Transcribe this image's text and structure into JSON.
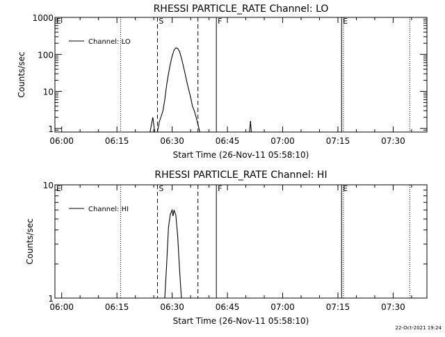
{
  "chart_data": [
    {
      "type": "line",
      "title": "RHESSI PARTICLE_RATE Channel: LO",
      "xlabel": "Start Time (26-Nov-11 05:58:10)",
      "ylabel": "Counts/sec",
      "x_tick_labels": [
        "06:00",
        "06:15",
        "06:30",
        "06:45",
        "07:00",
        "07:15",
        "07:30"
      ],
      "x_ticks": [
        "06:00",
        "06:15",
        "06:30",
        "06:45",
        "07:00",
        "07:15",
        "07:30"
      ],
      "xlim": [
        "05:58:10",
        "07:39:10"
      ],
      "yscale": "log",
      "ylim": [
        0.8,
        1000
      ],
      "y_tick_labels": [
        "1",
        "10",
        "100",
        "1000"
      ],
      "y_ticks": [
        1,
        10,
        100,
        1000
      ],
      "legend": {
        "label": "Channel: LO",
        "position": "top-left"
      },
      "markers": [
        {
          "label": "E",
          "time": "05:58:10",
          "style": "solid"
        },
        {
          "label": "",
          "time": "06:16:00",
          "style": "dotted"
        },
        {
          "label": "S",
          "time": "06:26:00",
          "style": "dashed"
        },
        {
          "label": "",
          "time": "06:37:00",
          "style": "dashed"
        },
        {
          "label": "F",
          "time": "06:42:00",
          "style": "solid"
        },
        {
          "label": "E",
          "time": "07:16:00",
          "style": "solid"
        },
        {
          "label": "",
          "time": "07:16:30",
          "style": "dotted"
        },
        {
          "label": "",
          "time": "07:34:30",
          "style": "dotted"
        }
      ],
      "series": [
        {
          "name": "Channel: LO",
          "points": [
            [
              "06:24:00",
              0.8
            ],
            [
              "06:24:45",
              2
            ],
            [
              "06:25:15",
              0.8
            ],
            [
              "06:26:00",
              0.8
            ],
            [
              "06:26:30",
              1.5
            ],
            [
              "06:27:30",
              3
            ],
            [
              "06:28:00",
              6
            ],
            [
              "06:28:30",
              15
            ],
            [
              "06:29:00",
              30
            ],
            [
              "06:29:30",
              55
            ],
            [
              "06:30:00",
              90
            ],
            [
              "06:30:30",
              130
            ],
            [
              "06:31:00",
              150
            ],
            [
              "06:31:30",
              145
            ],
            [
              "06:32:00",
              120
            ],
            [
              "06:32:30",
              80
            ],
            [
              "06:33:00",
              50
            ],
            [
              "06:33:30",
              30
            ],
            [
              "06:34:00",
              18
            ],
            [
              "06:34:30",
              11
            ],
            [
              "06:35:00",
              7
            ],
            [
              "06:35:30",
              4
            ],
            [
              "06:36:00",
              3
            ],
            [
              "06:36:30",
              2
            ],
            [
              "06:37:00",
              1.3
            ],
            [
              "06:37:30",
              0.8
            ]
          ]
        },
        {
          "name": "Channel: LO",
          "points": [
            [
              "06:51:00",
              0.8
            ],
            [
              "06:51:15",
              1.6
            ],
            [
              "06:51:30",
              0.8
            ]
          ]
        }
      ]
    },
    {
      "type": "line",
      "title": "RHESSI PARTICLE_RATE Channel: HI",
      "xlabel": "Start Time (26-Nov-11 05:58:10)",
      "ylabel": "Counts/sec",
      "x_tick_labels": [
        "06:00",
        "06:15",
        "06:30",
        "06:45",
        "07:00",
        "07:15",
        "07:30"
      ],
      "x_ticks": [
        "06:00",
        "06:15",
        "06:30",
        "06:45",
        "07:00",
        "07:15",
        "07:30"
      ],
      "xlim": [
        "05:58:10",
        "07:39:10"
      ],
      "yscale": "log",
      "ylim": [
        1,
        10
      ],
      "y_tick_labels": [
        "1",
        "10"
      ],
      "y_ticks": [
        1,
        10
      ],
      "legend": {
        "label": "Channel: HI",
        "position": "top-left"
      },
      "markers": [
        {
          "label": "E",
          "time": "05:58:10",
          "style": "solid"
        },
        {
          "label": "",
          "time": "06:16:00",
          "style": "dotted"
        },
        {
          "label": "S",
          "time": "06:26:00",
          "style": "dashed"
        },
        {
          "label": "",
          "time": "06:37:00",
          "style": "dashed"
        },
        {
          "label": "F",
          "time": "06:42:00",
          "style": "solid"
        },
        {
          "label": "E",
          "time": "07:16:00",
          "style": "solid"
        },
        {
          "label": "",
          "time": "07:16:30",
          "style": "dotted"
        },
        {
          "label": "",
          "time": "07:34:30",
          "style": "dotted"
        }
      ],
      "series": [
        {
          "name": "Channel: HI",
          "points": [
            [
              "06:28:00",
              1
            ],
            [
              "06:28:30",
              2
            ],
            [
              "06:29:00",
              4.2
            ],
            [
              "06:29:30",
              5.5
            ],
            [
              "06:30:00",
              6
            ],
            [
              "06:30:15",
              5.3
            ],
            [
              "06:30:30",
              6
            ],
            [
              "06:31:00",
              5.4
            ],
            [
              "06:31:30",
              3.5
            ],
            [
              "06:32:00",
              1.8
            ],
            [
              "06:32:30",
              1
            ]
          ]
        }
      ]
    }
  ],
  "footer": {
    "timestamp": "22-Oct-2021 19:24"
  }
}
